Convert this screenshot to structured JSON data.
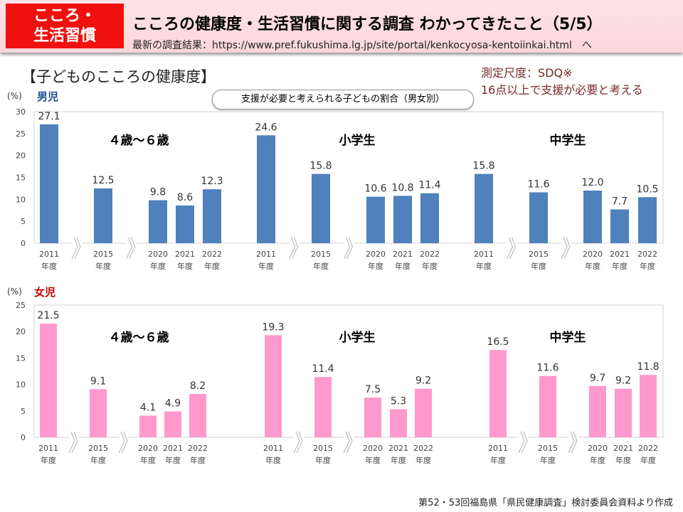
{
  "header": {
    "badge_line1": "こころ・",
    "badge_line2": "生活習慣",
    "title": "こころの健康度・生活習慣に関する調査 わかってきたこと（5/5）",
    "subtitle": "最新の調査結果：https://www.pref.fukushima.lg.jp/site/portal/kenkocyosa-kentoiinkai.html　へ"
  },
  "section_title": "【子どものこころの健康度】",
  "measure": {
    "line1": "測定尺度：SDQ※",
    "line2": "16点以上で支援が必要と考える"
  },
  "chart_caption": "支援が必要と考えられる子どもの割合（男女別）",
  "source": "第52・53回福島県「県民健康調査」検討委員会資料より作成",
  "chart_data": [
    {
      "type": "bar",
      "title": "男児",
      "ylabel": "(%)",
      "ylim": [
        0,
        30
      ],
      "yticks": [
        0,
        5,
        10,
        15,
        20,
        25,
        30
      ],
      "color": "#4f81bd",
      "groups": [
        "４歳～６歳",
        "小学生",
        "中学生"
      ],
      "categories": [
        "2011\n年度",
        "2015\n年度",
        "2020\n年度",
        "2021\n年度",
        "2022\n年度"
      ],
      "series": [
        {
          "group": "４歳～６歳",
          "values": [
            27.1,
            12.5,
            9.8,
            8.6,
            12.3
          ]
        },
        {
          "group": "小学生",
          "values": [
            24.6,
            15.8,
            10.6,
            10.8,
            11.4
          ]
        },
        {
          "group": "中学生",
          "values": [
            15.8,
            11.6,
            12.0,
            7.7,
            10.5
          ]
        }
      ]
    },
    {
      "type": "bar",
      "title": "女児",
      "ylabel": "(%)",
      "ylim": [
        0,
        25
      ],
      "yticks": [
        0,
        5,
        10,
        15,
        20,
        25
      ],
      "color": "#ff99cc",
      "groups": [
        "４歳～６歳",
        "小学生",
        "中学生"
      ],
      "categories": [
        "2011\n年度",
        "2015\n年度",
        "2020\n年度",
        "2021\n年度",
        "2022\n年度"
      ],
      "series": [
        {
          "group": "４歳～６歳",
          "values": [
            21.5,
            9.1,
            4.1,
            4.9,
            8.2
          ]
        },
        {
          "group": "小学生",
          "values": [
            19.3,
            11.4,
            7.5,
            5.3,
            9.2
          ]
        },
        {
          "group": "中学生",
          "values": [
            16.5,
            11.6,
            9.7,
            9.2,
            11.8
          ]
        }
      ]
    }
  ]
}
